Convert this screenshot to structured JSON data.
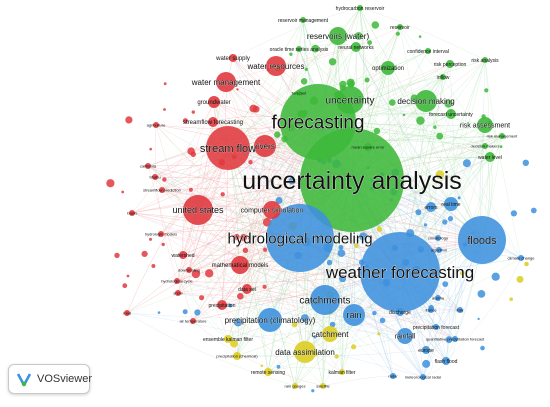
{
  "colors": {
    "red": "#e0393e",
    "green": "#3db83a",
    "blue": "#3d91dd",
    "yellow": "#dccd22",
    "edge_red": "#f2a3a6",
    "edge_green": "#a6dca4",
    "edge_blue": "#a9cdee"
  },
  "badge": {
    "label": "VOSviewer",
    "icon": "vosviewer-logo-icon"
  },
  "nodes": [
    {
      "label": "uncertainty analysis",
      "cluster": "green",
      "weight": 10
    },
    {
      "label": "forecasting",
      "cluster": "green",
      "weight": 8
    },
    {
      "label": "weather forecasting",
      "cluster": "blue",
      "weight": 9
    },
    {
      "label": "hydrological modeling",
      "cluster": "blue",
      "weight": 7
    },
    {
      "label": "floods",
      "cluster": "blue",
      "weight": 5
    },
    {
      "label": "stream flow",
      "cluster": "red",
      "weight": 5
    },
    {
      "label": "uncertainty",
      "cluster": "green",
      "weight": 4
    },
    {
      "label": "catchments",
      "cluster": "blue",
      "weight": 4
    },
    {
      "label": "united states",
      "cluster": "red",
      "weight": 4
    },
    {
      "label": "rain",
      "cluster": "blue",
      "weight": 3
    },
    {
      "label": "rivers",
      "cluster": "red",
      "weight": 3
    },
    {
      "label": "decision making",
      "cluster": "green",
      "weight": 3
    },
    {
      "label": "water resources",
      "cluster": "red",
      "weight": 3
    },
    {
      "label": "reservoirs (water)",
      "cluster": "green",
      "weight": 3
    },
    {
      "label": "water management",
      "cluster": "red",
      "weight": 3
    },
    {
      "label": "precipitation (climatology)",
      "cluster": "blue",
      "weight": 3
    },
    {
      "label": "data assimilation",
      "cluster": "yellow",
      "weight": 3
    },
    {
      "label": "catchment",
      "cluster": "yellow",
      "weight": 2
    },
    {
      "label": "rainfall",
      "cluster": "blue",
      "weight": 2
    },
    {
      "label": "computer simulation",
      "cluster": "red",
      "weight": 2
    },
    {
      "label": "mathematical models",
      "cluster": "red",
      "weight": 2
    },
    {
      "label": "optimization",
      "cluster": "green",
      "weight": 2
    },
    {
      "label": "risk assessment",
      "cluster": "green",
      "weight": 2
    },
    {
      "label": "hydrocarbon reservoir",
      "cluster": "green",
      "weight": 1
    },
    {
      "label": "reservoir management",
      "cluster": "green",
      "weight": 1
    },
    {
      "label": "reservoir",
      "cluster": "green",
      "weight": 1
    },
    {
      "label": "confidence interval",
      "cluster": "green",
      "weight": 1
    },
    {
      "label": "neural networks",
      "cluster": "green",
      "weight": 1
    },
    {
      "label": "oracle time series analysis",
      "cluster": "green",
      "weight": 1
    },
    {
      "label": "water supply",
      "cluster": "red",
      "weight": 1
    },
    {
      "label": "risk perception",
      "cluster": "green",
      "weight": 1
    },
    {
      "label": "risk analysis",
      "cluster": "green",
      "weight": 1
    },
    {
      "label": "inflow",
      "cluster": "green",
      "weight": 1
    },
    {
      "label": "groundwater",
      "cluster": "red",
      "weight": 1
    },
    {
      "label": "forecast uncertainty",
      "cluster": "green",
      "weight": 1
    },
    {
      "label": "streamflow forecasting",
      "cluster": "red",
      "weight": 1
    },
    {
      "label": "agriculture",
      "cluster": "red",
      "weight": 1
    },
    {
      "label": "risk management",
      "cluster": "green",
      "weight": 1
    },
    {
      "label": "decision makers",
      "cluster": "green",
      "weight": 1
    },
    {
      "label": "water level",
      "cluster": "green",
      "weight": 1
    },
    {
      "label": "mean square error",
      "cluster": "green",
      "weight": 1
    },
    {
      "label": "california",
      "cluster": "red",
      "weight": 1
    },
    {
      "label": "bhabu",
      "cluster": "red",
      "weight": 1
    },
    {
      "label": "streamflow prediction",
      "cluster": "red",
      "weight": 1
    },
    {
      "label": "basin",
      "cluster": "red",
      "weight": 1
    },
    {
      "label": "real time",
      "cluster": "blue",
      "weight": 1
    },
    {
      "label": "errors",
      "cluster": "blue",
      "weight": 1
    },
    {
      "label": "hydrologic models",
      "cluster": "red",
      "weight": 1
    },
    {
      "label": "watershed",
      "cluster": "red",
      "weight": 1
    },
    {
      "label": "downscaling",
      "cluster": "red",
      "weight": 1
    },
    {
      "label": "hydrological cycle",
      "cluster": "red",
      "weight": 1
    },
    {
      "label": "snow",
      "cluster": "red",
      "weight": 1
    },
    {
      "label": "data set",
      "cluster": "red",
      "weight": 1
    },
    {
      "label": "precipitation",
      "cluster": "red",
      "weight": 1
    },
    {
      "label": "ensemble kalman filter",
      "cluster": "yellow",
      "weight": 1
    },
    {
      "label": "air temperature",
      "cluster": "red",
      "weight": 1
    },
    {
      "label": "precipitation (chemical)",
      "cluster": "yellow",
      "weight": 1
    },
    {
      "label": "remote sensing",
      "cluster": "yellow",
      "weight": 1
    },
    {
      "label": "kalman filter",
      "cluster": "yellow",
      "weight": 1
    },
    {
      "label": "satellite",
      "cluster": "yellow",
      "weight": 1
    },
    {
      "label": "rain gauges",
      "cluster": "yellow",
      "weight": 1
    },
    {
      "label": "radar",
      "cluster": "blue",
      "weight": 1
    },
    {
      "label": "meteorological radar",
      "cluster": "blue",
      "weight": 1
    },
    {
      "label": "flash flood",
      "cluster": "blue",
      "weight": 1
    },
    {
      "label": "europe",
      "cluster": "blue",
      "weight": 1
    },
    {
      "label": "quantitative precipitation forecast",
      "cluster": "blue",
      "weight": 1
    },
    {
      "label": "precipitation forecast",
      "cluster": "blue",
      "weight": 1
    },
    {
      "label": "discharge",
      "cluster": "blue",
      "weight": 1
    },
    {
      "label": "france",
      "cluster": "blue",
      "weight": 1
    },
    {
      "label": "italy",
      "cluster": "blue",
      "weight": 1
    },
    {
      "label": "austria",
      "cluster": "blue",
      "weight": 1
    },
    {
      "label": "climatology",
      "cluster": "blue",
      "weight": 1
    },
    {
      "label": "algorithm",
      "cluster": "blue",
      "weight": 1
    },
    {
      "label": "climate change",
      "cluster": "blue",
      "weight": 1
    },
    {
      "label": "forecast",
      "cluster": "green",
      "weight": 1
    },
    {
      "label": "road",
      "cluster": "red",
      "weight": 1
    }
  ]
}
